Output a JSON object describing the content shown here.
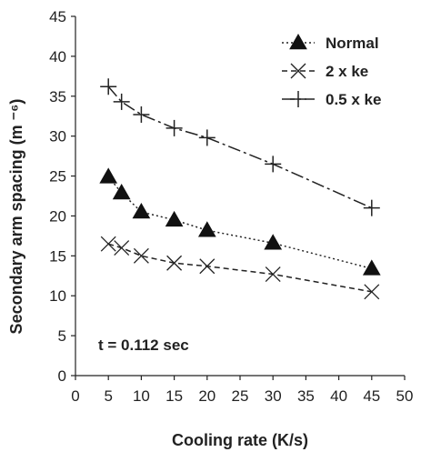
{
  "chart_data": {
    "type": "line",
    "title": "",
    "xlabel": "Cooling rate (K/s)",
    "ylabel": "Secondary arm spacing (m ⁻⁶)",
    "xlim": [
      0,
      50
    ],
    "ylim": [
      0,
      45
    ],
    "x_ticks": [
      "0",
      "5",
      "10",
      "15",
      "20",
      "25",
      "30",
      "35",
      "40",
      "45",
      "50"
    ],
    "y_ticks": [
      "0",
      "5",
      "10",
      "15",
      "20",
      "25",
      "30",
      "35",
      "40",
      "45"
    ],
    "grid": false,
    "legend_position": "top-right",
    "annotation": "t = 0.112 sec",
    "series": [
      {
        "name": "Normal",
        "marker": "triangle",
        "line_style": "dotted",
        "x": [
          5,
          7,
          10,
          15,
          20,
          30,
          45
        ],
        "y": [
          24.9,
          22.9,
          20.5,
          19.5,
          18.2,
          16.6,
          13.4
        ]
      },
      {
        "name": "2 x ke",
        "marker": "x",
        "line_style": "dashed",
        "x": [
          5,
          7,
          10,
          15,
          20,
          30,
          45
        ],
        "y": [
          16.5,
          16.0,
          15.0,
          14.1,
          13.7,
          12.7,
          10.5
        ]
      },
      {
        "name": "0.5 x ke",
        "marker": "plus",
        "line_style": "dashdot",
        "x": [
          5,
          7,
          10,
          15,
          20,
          30,
          45
        ],
        "y": [
          36.2,
          34.3,
          32.7,
          31.0,
          29.8,
          26.5,
          21.0
        ]
      }
    ]
  }
}
